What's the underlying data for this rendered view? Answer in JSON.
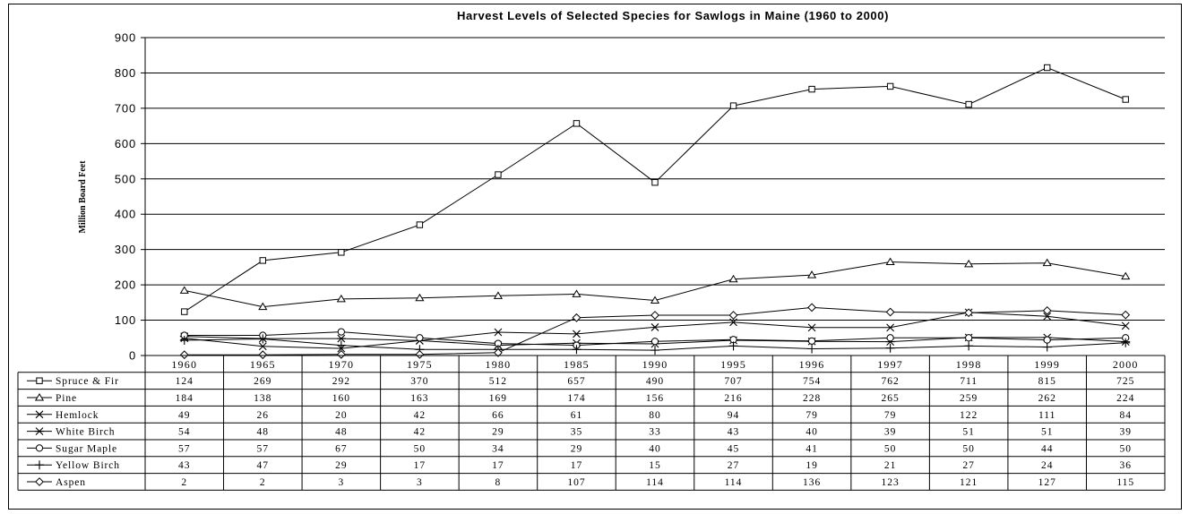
{
  "chart_data": {
    "type": "line",
    "title": "Harvest Levels of Selected Species for Sawlogs in Maine (1960 to 2000)",
    "ylabel": "Million Board Feet",
    "xlabel": "",
    "ylim": [
      0,
      900
    ],
    "yticks": [
      0,
      100,
      200,
      300,
      400,
      500,
      600,
      700,
      800,
      900
    ],
    "grid": true,
    "legend": "data table below chart",
    "categories": [
      "1960",
      "1965",
      "1970",
      "1975",
      "1980",
      "1985",
      "1990",
      "1995",
      "1996",
      "1997",
      "1998",
      "1999",
      "2000"
    ],
    "series": [
      {
        "name": "Spruce & Fir",
        "marker": "square",
        "values": [
          124,
          269,
          292,
          370,
          512,
          657,
          490,
          707,
          754,
          762,
          711,
          815,
          725
        ]
      },
      {
        "name": "Pine",
        "marker": "triangle",
        "values": [
          184,
          138,
          160,
          163,
          169,
          174,
          156,
          216,
          228,
          265,
          259,
          262,
          224
        ]
      },
      {
        "name": "Hemlock",
        "marker": "x",
        "values": [
          49,
          26,
          20,
          42,
          66,
          61,
          80,
          94,
          79,
          79,
          122,
          111,
          84
        ]
      },
      {
        "name": "White Birch",
        "marker": "star",
        "values": [
          54,
          48,
          48,
          42,
          29,
          35,
          33,
          43,
          40,
          39,
          51,
          51,
          39
        ]
      },
      {
        "name": "Sugar Maple",
        "marker": "circle",
        "values": [
          57,
          57,
          67,
          50,
          34,
          29,
          40,
          45,
          41,
          50,
          50,
          44,
          50
        ]
      },
      {
        "name": "Yellow Birch",
        "marker": "plus",
        "values": [
          43,
          47,
          29,
          17,
          17,
          17,
          15,
          27,
          19,
          21,
          27,
          24,
          36
        ]
      },
      {
        "name": "Aspen",
        "marker": "diamond",
        "values": [
          2,
          2,
          3,
          3,
          8,
          107,
          114,
          114,
          136,
          123,
          121,
          127,
          115
        ]
      }
    ]
  }
}
